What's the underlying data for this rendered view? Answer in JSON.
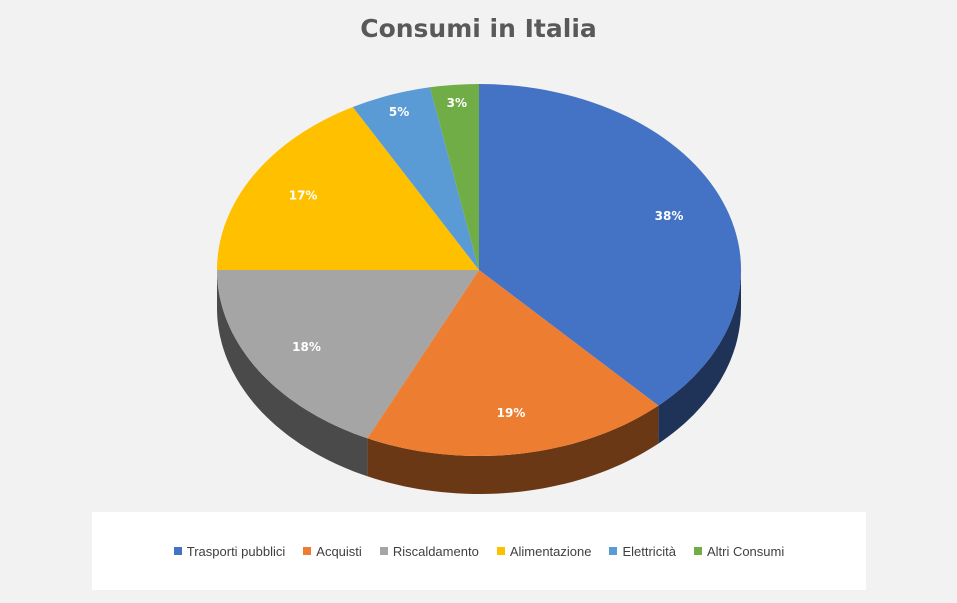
{
  "chart_data": {
    "type": "pie",
    "title": "Consumi in Italia",
    "categories": [
      "Trasporti pubblici",
      "Acquisti",
      "Riscaldamento",
      "Alimentazione",
      "Elettricità",
      "Altri Consumi"
    ],
    "values": [
      38,
      19,
      18,
      17,
      5,
      3
    ],
    "labels": [
      "38%",
      "19%",
      "18%",
      "17%",
      "5%",
      "3%"
    ],
    "colors": [
      "#4472C4",
      "#ED7D31",
      "#A5A5A5",
      "#FFC000",
      "#5B9BD5",
      "#70AD47"
    ],
    "legend_position": "bottom",
    "style": "3d"
  }
}
